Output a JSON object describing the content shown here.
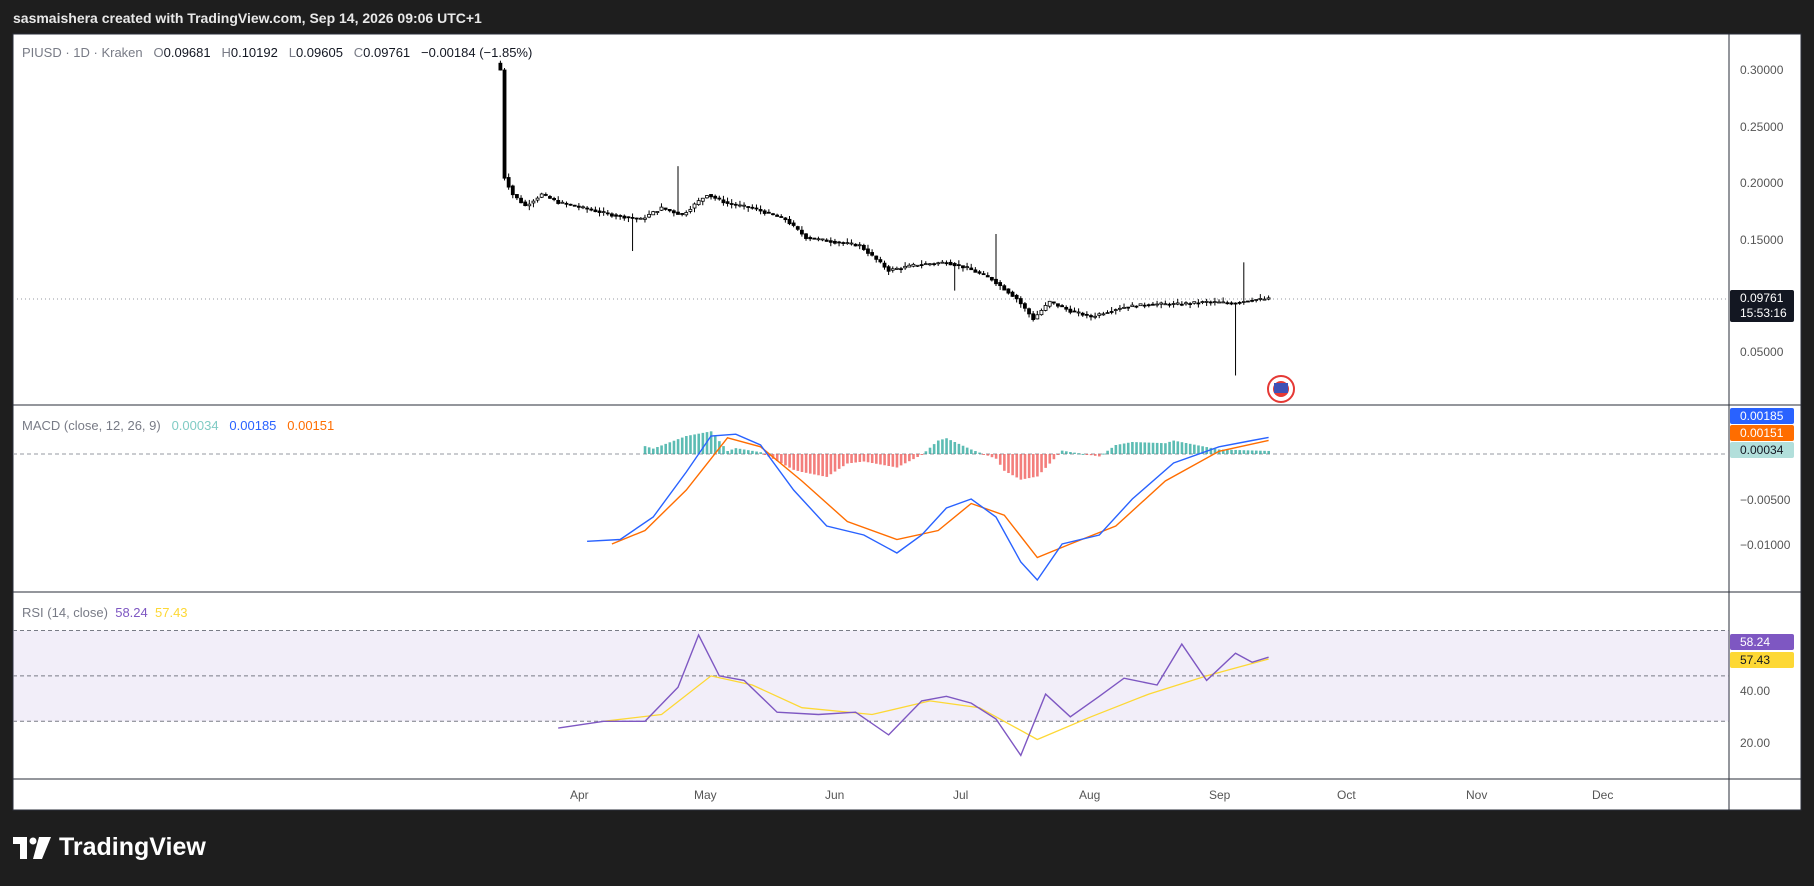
{
  "header": {
    "attribution": "sasmaishera created with TradingView.com, Sep 14, 2026 09:06 UTC+1"
  },
  "brand": {
    "name": "TradingView"
  },
  "legend": {
    "symbol": "PIUSD · 1D · Kraken",
    "o_label": "O",
    "o": "0.09681",
    "h_label": "H",
    "h": "0.10192",
    "l_label": "L",
    "l": "0.09605",
    "c_label": "C",
    "c": "0.09761",
    "change": "−0.00184 (−1.85%)"
  },
  "macd_legend": {
    "label": "MACD (close, 12, 26, 9)",
    "hist": "0.00034",
    "macd": "0.00185",
    "signal": "0.00151"
  },
  "rsi_legend": {
    "label": "RSI (14, close)",
    "rsi": "58.24",
    "ma": "57.43"
  },
  "price_axis": {
    "ticks": [
      "0.30000",
      "0.25000",
      "0.20000",
      "0.15000",
      "0.05000"
    ],
    "last_price": "0.09761",
    "countdown": "15:53:16"
  },
  "macd_axis": {
    "ticks": [
      "−0.00500",
      "−0.01000"
    ],
    "macd_tag": "0.00185",
    "signal_tag": "0.00151",
    "hist_tag": "0.00034"
  },
  "rsi_axis": {
    "ticks": [
      "40.00",
      "20.00"
    ],
    "rsi_tag": "58.24",
    "ma_tag": "57.43"
  },
  "time_axis": {
    "labels": [
      "Apr",
      "May",
      "Jun",
      "Jul",
      "Aug",
      "Sep",
      "Oct",
      "Nov",
      "Dec"
    ]
  },
  "colors": {
    "up": "#26a69a",
    "down": "#ef5350",
    "macd": "#2962ff",
    "signal": "#ff6d00",
    "rsi": "#7e57c2",
    "rsi_ma": "#fdd835",
    "candle": "#000000"
  },
  "chart_data": [
    {
      "type": "candlestick",
      "symbol": "PIUSD",
      "timeframe": "1D",
      "ylim": [
        0.0,
        0.31
      ],
      "x_range": [
        "Mar 2026",
        "Dec 2026"
      ],
      "close_series": [
        {
          "date": "2026-03-12",
          "close": 0.3
        },
        {
          "date": "2026-03-13",
          "close": 0.205
        },
        {
          "date": "2026-03-15",
          "close": 0.19
        },
        {
          "date": "2026-03-18",
          "close": 0.18
        },
        {
          "date": "2026-03-22",
          "close": 0.19
        },
        {
          "date": "2026-03-26",
          "close": 0.183
        },
        {
          "date": "2026-04-01",
          "close": 0.178
        },
        {
          "date": "2026-04-08",
          "close": 0.172
        },
        {
          "date": "2026-04-15",
          "close": 0.168
        },
        {
          "date": "2026-04-20",
          "close": 0.178
        },
        {
          "date": "2026-04-25",
          "close": 0.172
        },
        {
          "date": "2026-05-01",
          "close": 0.19
        },
        {
          "date": "2026-05-06",
          "close": 0.182
        },
        {
          "date": "2026-05-12",
          "close": 0.178
        },
        {
          "date": "2026-05-20",
          "close": 0.168
        },
        {
          "date": "2026-05-25",
          "close": 0.152
        },
        {
          "date": "2026-06-01",
          "close": 0.148
        },
        {
          "date": "2026-06-07",
          "close": 0.145
        },
        {
          "date": "2026-06-14",
          "close": 0.123
        },
        {
          "date": "2026-06-21",
          "close": 0.128
        },
        {
          "date": "2026-06-28",
          "close": 0.13
        },
        {
          "date": "2026-07-03",
          "close": 0.125
        },
        {
          "date": "2026-07-09",
          "close": 0.115
        },
        {
          "date": "2026-07-15",
          "close": 0.098
        },
        {
          "date": "2026-07-19",
          "close": 0.08
        },
        {
          "date": "2026-07-23",
          "close": 0.095
        },
        {
          "date": "2026-07-28",
          "close": 0.087
        },
        {
          "date": "2026-08-02",
          "close": 0.082
        },
        {
          "date": "2026-08-09",
          "close": 0.09
        },
        {
          "date": "2026-08-16",
          "close": 0.093
        },
        {
          "date": "2026-08-23",
          "close": 0.093
        },
        {
          "date": "2026-08-30",
          "close": 0.095
        },
        {
          "date": "2026-09-05",
          "close": 0.094
        },
        {
          "date": "2026-09-10",
          "close": 0.097
        },
        {
          "date": "2026-09-14",
          "close": 0.09761
        }
      ],
      "wicks": [
        {
          "date": "2026-04-24",
          "high": 0.215
        },
        {
          "date": "2026-04-13",
          "low": 0.14
        },
        {
          "date": "2026-07-10",
          "high": 0.155
        },
        {
          "date": "2026-06-30",
          "low": 0.105
        },
        {
          "date": "2026-09-06",
          "low": 0.03
        },
        {
          "date": "2026-09-08",
          "high": 0.13
        }
      ]
    },
    {
      "type": "line",
      "name": "MACD (close, 12, 26, 9)",
      "series": [
        {
          "name": "MACD",
          "points": [
            [
              "2026-04-02",
              -0.0097
            ],
            [
              "2026-04-10",
              -0.0095
            ],
            [
              "2026-04-18",
              -0.007
            ],
            [
              "2026-04-26",
              -0.002
            ],
            [
              "2026-05-02",
              0.002
            ],
            [
              "2026-05-08",
              0.0022
            ],
            [
              "2026-05-14",
              0.001
            ],
            [
              "2026-05-22",
              -0.004
            ],
            [
              "2026-05-30",
              -0.008
            ],
            [
              "2026-06-08",
              -0.009
            ],
            [
              "2026-06-16",
              -0.011
            ],
            [
              "2026-06-22",
              -0.009
            ],
            [
              "2026-06-28",
              -0.006
            ],
            [
              "2026-07-04",
              -0.005
            ],
            [
              "2026-07-10",
              -0.007
            ],
            [
              "2026-07-16",
              -0.012
            ],
            [
              "2026-07-20",
              -0.014
            ],
            [
              "2026-07-26",
              -0.01
            ],
            [
              "2026-08-04",
              -0.009
            ],
            [
              "2026-08-12",
              -0.005
            ],
            [
              "2026-08-22",
              -0.001
            ],
            [
              "2026-09-02",
              0.0008
            ],
            [
              "2026-09-10",
              0.0015
            ],
            [
              "2026-09-14",
              0.00185
            ]
          ]
        },
        {
          "name": "Signal",
          "points": [
            [
              "2026-04-08",
              -0.01
            ],
            [
              "2026-04-16",
              -0.0085
            ],
            [
              "2026-04-26",
              -0.004
            ],
            [
              "2026-05-06",
              0.0018
            ],
            [
              "2026-05-14",
              0.0008
            ],
            [
              "2026-05-24",
              -0.003
            ],
            [
              "2026-06-04",
              -0.0075
            ],
            [
              "2026-06-16",
              -0.0095
            ],
            [
              "2026-06-26",
              -0.0085
            ],
            [
              "2026-07-04",
              -0.0055
            ],
            [
              "2026-07-12",
              -0.0068
            ],
            [
              "2026-07-20",
              -0.0115
            ],
            [
              "2026-07-28",
              -0.01
            ],
            [
              "2026-08-08",
              -0.008
            ],
            [
              "2026-08-20",
              -0.003
            ],
            [
              "2026-09-02",
              0.0003
            ],
            [
              "2026-09-14",
              0.00151
            ]
          ]
        }
      ],
      "histogram": {
        "last": 0.00034
      }
    },
    {
      "type": "line",
      "name": "RSI (14, close)",
      "ylim": [
        10,
        70
      ],
      "bands": [
        30,
        50,
        70
      ],
      "series": [
        {
          "name": "RSI",
          "points": [
            [
              "2026-03-26",
              27
            ],
            [
              "2026-04-06",
              30
            ],
            [
              "2026-04-16",
              30
            ],
            [
              "2026-04-24",
              45
            ],
            [
              "2026-04-29",
              68
            ],
            [
              "2026-05-04",
              50
            ],
            [
              "2026-05-10",
              48
            ],
            [
              "2026-05-18",
              34
            ],
            [
              "2026-05-28",
              33
            ],
            [
              "2026-06-06",
              34
            ],
            [
              "2026-06-14",
              24
            ],
            [
              "2026-06-22",
              39
            ],
            [
              "2026-06-28",
              41
            ],
            [
              "2026-07-04",
              38
            ],
            [
              "2026-07-10",
              31
            ],
            [
              "2026-07-16",
              15
            ],
            [
              "2026-07-22",
              42
            ],
            [
              "2026-07-28",
              32
            ],
            [
              "2026-08-04",
              41
            ],
            [
              "2026-08-10",
              49
            ],
            [
              "2026-08-18",
              46
            ],
            [
              "2026-08-24",
              64
            ],
            [
              "2026-08-30",
              48
            ],
            [
              "2026-09-06",
              60
            ],
            [
              "2026-09-10",
              56
            ],
            [
              "2026-09-14",
              58.24
            ]
          ]
        },
        {
          "name": "RSI MA",
          "points": [
            [
              "2026-04-06",
              30
            ],
            [
              "2026-04-20",
              33
            ],
            [
              "2026-05-02",
              50
            ],
            [
              "2026-05-12",
              46
            ],
            [
              "2026-05-24",
              36
            ],
            [
              "2026-06-10",
              33
            ],
            [
              "2026-06-24",
              39
            ],
            [
              "2026-07-06",
              36
            ],
            [
              "2026-07-20",
              22
            ],
            [
              "2026-08-02",
              32
            ],
            [
              "2026-08-16",
              42
            ],
            [
              "2026-08-30",
              50
            ],
            [
              "2026-09-14",
              57.43
            ]
          ]
        }
      ]
    }
  ]
}
